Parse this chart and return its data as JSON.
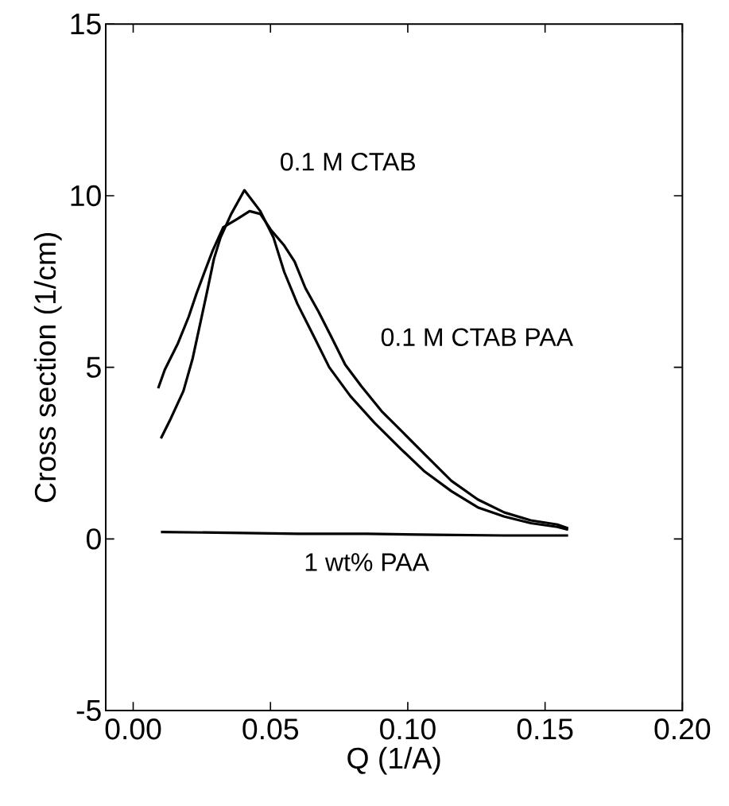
{
  "chart_data": {
    "type": "line",
    "xlabel": "Q (1/A)",
    "ylabel": "Cross section (1/cm)",
    "xlim": [
      -0.01,
      0.2
    ],
    "ylim": [
      -5,
      15
    ],
    "xticks": [
      {
        "value": 0,
        "label": "0.00"
      },
      {
        "value": 0.05,
        "label": "0.05"
      },
      {
        "value": 0.1,
        "label": "0.10"
      },
      {
        "value": 0.15,
        "label": "0.15"
      },
      {
        "value": 0.2,
        "label": "0.20"
      }
    ],
    "yticks": [
      -5,
      0,
      5,
      10,
      15
    ],
    "grid": false,
    "legend": false,
    "marker": "none",
    "line_style": "solid",
    "series": [
      {
        "name": "0.1 M CTAB",
        "color": "#000000",
        "x": [
          0.0101,
          0.0134,
          0.0183,
          0.0216,
          0.0245,
          0.027,
          0.0294,
          0.0318,
          0.0357,
          0.0405,
          0.0463,
          0.0511,
          0.055,
          0.0598,
          0.0656,
          0.0714,
          0.0791,
          0.0878,
          0.0975,
          0.1062,
          0.1159,
          0.1255,
          0.1352,
          0.1448,
          0.1545,
          0.1584
        ],
        "values": [
          2.93,
          3.46,
          4.31,
          5.24,
          6.31,
          7.24,
          8.16,
          8.78,
          9.47,
          10.16,
          9.55,
          8.78,
          7.78,
          6.85,
          5.93,
          5.0,
          4.16,
          3.39,
          2.62,
          1.96,
          1.39,
          0.92,
          0.65,
          0.46,
          0.35,
          0.27
        ]
      },
      {
        "name": "0.1 M CTAB PAA",
        "color": "#000000",
        "x": [
          0.0091,
          0.0115,
          0.0163,
          0.0202,
          0.0231,
          0.026,
          0.0289,
          0.0328,
          0.0376,
          0.0424,
          0.0463,
          0.0501,
          0.055,
          0.0588,
          0.0627,
          0.0675,
          0.0724,
          0.0772,
          0.083,
          0.0907,
          0.0985,
          0.1062,
          0.1159,
          0.1255,
          0.1352,
          0.1448,
          0.1545,
          0.1584
        ],
        "values": [
          4.39,
          4.93,
          5.7,
          6.47,
          7.16,
          7.78,
          8.39,
          9.08,
          9.31,
          9.55,
          9.47,
          9.01,
          8.55,
          8.08,
          7.31,
          6.62,
          5.85,
          5.08,
          4.46,
          3.7,
          3.08,
          2.46,
          1.69,
          1.15,
          0.77,
          0.54,
          0.42,
          0.31
        ]
      },
      {
        "name": "1 wt% PAA",
        "color": "#000000",
        "x": [
          0.0101,
          0.035,
          0.06,
          0.085,
          0.11,
          0.135,
          0.1584
        ],
        "values": [
          0.2,
          0.18,
          0.15,
          0.15,
          0.12,
          0.1,
          0.1
        ]
      }
    ]
  }
}
